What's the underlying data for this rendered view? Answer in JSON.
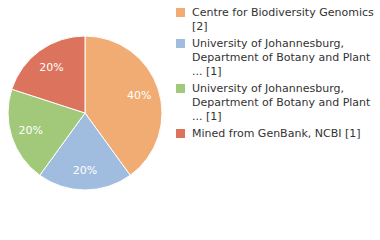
{
  "chart_data": {
    "type": "pie",
    "categories": [
      "Centre for Biodiversity Genomics [2]",
      "University of Johannesburg, Department of Botany and Plant ... [1]",
      "University of Johannesburg, Department of Botany and Plant ... [1]",
      "Mined from GenBank, NCBI [1]"
    ],
    "values": [
      40,
      20,
      20,
      20
    ],
    "value_labels": [
      "40%",
      "20%",
      "20%",
      "20%"
    ],
    "colors": [
      "#f0ac72",
      "#a0bde0",
      "#a2c97a",
      "#dc735d"
    ],
    "data_labels": true,
    "legend": "right"
  }
}
